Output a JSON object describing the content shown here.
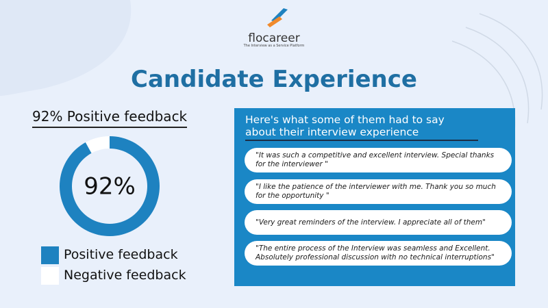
{
  "header": {
    "brand": "flocareer",
    "tagline": "The Interview as a Service Platform",
    "title": "Candidate Experience"
  },
  "chart_data": {
    "type": "donut",
    "title": "92% Positive feedback",
    "categories": [
      "Positive feedback",
      "Negative feedback"
    ],
    "values": [
      92,
      8
    ],
    "colors": [
      "#1e82c0",
      "#ffffff"
    ],
    "center_label": "92%"
  },
  "testimonials": {
    "heading": "Here's what some of them had to say about their interview experience",
    "quotes": [
      "\"It was such a competitive and excellent interview. Special thanks for the interviewer \"",
      "\"I like the patience of the interviewer with me. Thank you so much for the opportunity \"",
      "\"Very great reminders of the interview. I appreciate all of them\"",
      "\"The entire process of the Interview was seamless and Excellent. Absolutely professional discussion with no technical interruptions\""
    ]
  }
}
